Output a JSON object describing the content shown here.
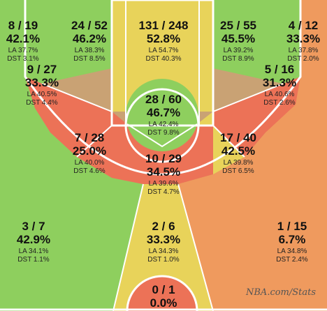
{
  "colors": {
    "green": "#8ecf5e",
    "yellow": "#e8d35a",
    "red": "#ec7257",
    "orange": "#ef9a5e",
    "line": "#ffffff",
    "wood": "#c9a274"
  },
  "watermark": "NBA.com/Stats",
  "chart_data": {
    "type": "heatmap",
    "zones": [
      {
        "id": "left-corner-3",
        "made": 8,
        "att": 19,
        "fgm_fga": "8 / 19",
        "pct": "42.1%",
        "la": "LA 37.7%",
        "dst": "DST 3.1%",
        "color": "green"
      },
      {
        "id": "left-wing-3",
        "made": 24,
        "att": 52,
        "fgm_fga": "24 / 52",
        "pct": "46.2%",
        "la": "LA 38.3%",
        "dst": "DST 8.5%",
        "color": "green"
      },
      {
        "id": "top-key-paint",
        "made": 131,
        "att": 248,
        "fgm_fga": "131 / 248",
        "pct": "52.8%",
        "la": "LA 54.7%",
        "dst": "DST 40.3%",
        "color": "yellow"
      },
      {
        "id": "right-wing-3",
        "made": 25,
        "att": 55,
        "fgm_fga": "25 / 55",
        "pct": "45.5%",
        "la": "LA 39.2%",
        "dst": "DST 8.9%",
        "color": "green"
      },
      {
        "id": "right-corner-3",
        "made": 4,
        "att": 12,
        "fgm_fga": "4 / 12",
        "pct": "33.3%",
        "la": "LA 37.8%",
        "dst": "DST 2.0%",
        "color": "orange"
      },
      {
        "id": "left-baseline-mid",
        "made": 9,
        "att": 27,
        "fgm_fga": "9 / 27",
        "pct": "33.3%",
        "la": "LA 40.5%",
        "dst": "DST 4.4%",
        "color": "red"
      },
      {
        "id": "right-baseline-mid",
        "made": 5,
        "att": 16,
        "fgm_fga": "5 / 16",
        "pct": "31.3%",
        "la": "LA 40.6%",
        "dst": "DST 2.6%",
        "color": "red"
      },
      {
        "id": "paint-non-ra",
        "made": 28,
        "att": 60,
        "fgm_fga": "28 / 60",
        "pct": "46.7%",
        "la": "LA 42.4%",
        "dst": "DST 9.8%",
        "color": "green"
      },
      {
        "id": "left-elbow-mid",
        "made": 7,
        "att": 28,
        "fgm_fga": "7 / 28",
        "pct": "25.0%",
        "la": "LA 40.0%",
        "dst": "DST 4.6%",
        "color": "red"
      },
      {
        "id": "top-key-mid",
        "made": 10,
        "att": 29,
        "fgm_fga": "10 / 29",
        "pct": "34.5%",
        "la": "LA 39.6%",
        "dst": "DST 4.7%",
        "color": "red"
      },
      {
        "id": "right-elbow-mid",
        "made": 17,
        "att": 40,
        "fgm_fga": "17 / 40",
        "pct": "42.5%",
        "la": "LA 39.8%",
        "dst": "DST 6.5%",
        "color": "yellow"
      },
      {
        "id": "left-above-break-3",
        "made": 3,
        "att": 7,
        "fgm_fga": "3 / 7",
        "pct": "42.9%",
        "la": "LA 34.1%",
        "dst": "DST 1.1%",
        "color": "green"
      },
      {
        "id": "center-above-break-3",
        "made": 2,
        "att": 6,
        "fgm_fga": "2 / 6",
        "pct": "33.3%",
        "la": "LA 34.3%",
        "dst": "DST 1.0%",
        "color": "yellow"
      },
      {
        "id": "right-above-break-3",
        "made": 1,
        "att": 15,
        "fgm_fga": "1 / 15",
        "pct": "6.7%",
        "la": "LA 34.8%",
        "dst": "DST 2.4%",
        "color": "orange"
      },
      {
        "id": "backcourt",
        "made": 0,
        "att": 1,
        "fgm_fga": "0 / 1",
        "pct": "0.0%",
        "la": "",
        "dst": "",
        "color": "red"
      }
    ]
  }
}
